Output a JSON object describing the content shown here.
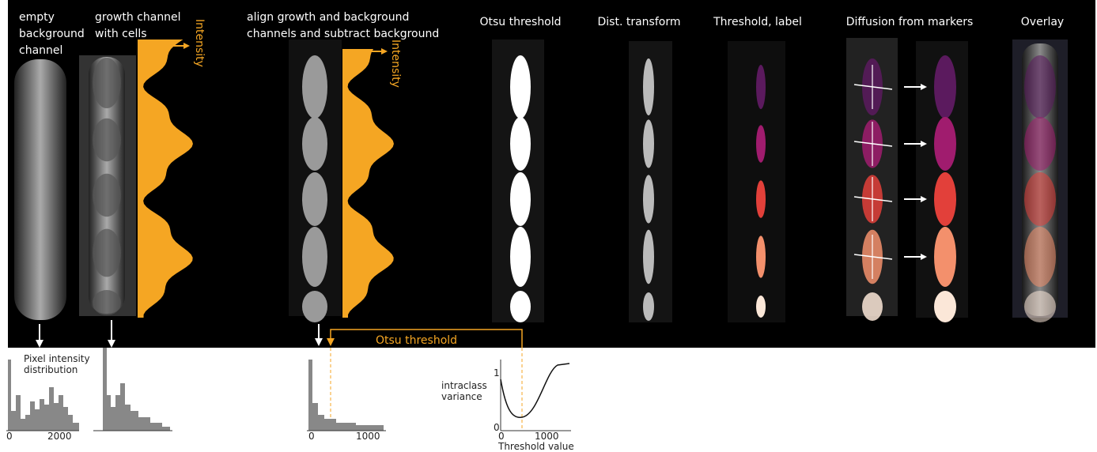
{
  "header": {
    "background_label": [
      "empty",
      "background",
      "channel"
    ],
    "growth_label": [
      "growth channel",
      "with cells"
    ],
    "intensity_labels": [
      "Intensity",
      "Intensity"
    ],
    "align_label": [
      "align growth and background",
      "channels and subtract background"
    ],
    "steps": [
      "Otsu threshold",
      "Dist. transform",
      "Threshold, label",
      "Diffusion from markers",
      "Overlay"
    ]
  },
  "histograms": {
    "caption": [
      "Pixel intensity",
      "distribution"
    ],
    "otsu_label": "Otsu threshold",
    "hist1_ticks": [
      "0",
      "2000"
    ],
    "hist3_ticks": [
      "0",
      "1000"
    ]
  },
  "variance_plot": {
    "y_label": [
      "intraclass",
      "variance"
    ],
    "y_ticks": [
      "1",
      "0"
    ],
    "x_ticks": [
      "0",
      "1000"
    ],
    "x_label": "Threshold value"
  }
}
